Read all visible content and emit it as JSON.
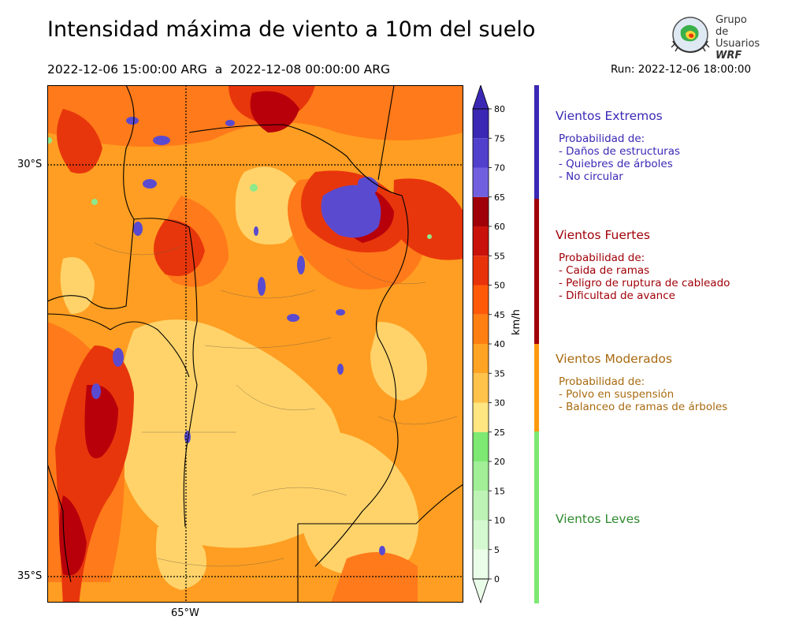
{
  "header": {
    "title": "Intensidad máxima de viento a 10m del suelo",
    "period": "2022-12-06 15:00:00 ARG  a  2022-12-08 00:00:00 ARG",
    "run": "Run: 2022-12-06 18:00:00"
  },
  "logo": {
    "line1": "Grupo de",
    "line2": "Usuarios",
    "line3": "WRF"
  },
  "map": {
    "lat_labels": [
      "30°S",
      "35°S"
    ],
    "lon_labels": [
      "65°W"
    ],
    "colors": {
      "light": "#ffd36a",
      "medium": "#ffa024",
      "orange": "#ff7a1a",
      "red": "#e8360c",
      "darkred": "#b8000a",
      "purple": "#5a4ad0",
      "green": "#8fe88a"
    }
  },
  "colorbar": {
    "unit": "km/h",
    "ticks": [
      "80",
      "75",
      "70",
      "65",
      "60",
      "55",
      "50",
      "45",
      "40",
      "35",
      "30",
      "25",
      "20",
      "15",
      "10",
      "5",
      "0"
    ],
    "bins": [
      {
        "from": 0,
        "to": 5,
        "color": "#eafde8"
      },
      {
        "from": 5,
        "to": 10,
        "color": "#d4f8cf"
      },
      {
        "from": 10,
        "to": 15,
        "color": "#bdf3b5"
      },
      {
        "from": 15,
        "to": 20,
        "color": "#a1ef97"
      },
      {
        "from": 20,
        "to": 25,
        "color": "#7de872"
      },
      {
        "from": 25,
        "to": 30,
        "color": "#ffe680"
      },
      {
        "from": 30,
        "to": 35,
        "color": "#ffc24a"
      },
      {
        "from": 35,
        "to": 40,
        "color": "#ffa324"
      },
      {
        "from": 40,
        "to": 45,
        "color": "#ff7f12"
      },
      {
        "from": 45,
        "to": 50,
        "color": "#ff5a08"
      },
      {
        "from": 50,
        "to": 55,
        "color": "#e8320a"
      },
      {
        "from": 55,
        "to": 60,
        "color": "#c8120a"
      },
      {
        "from": 60,
        "to": 65,
        "color": "#a00008"
      },
      {
        "from": 65,
        "to": 70,
        "color": "#7060e0"
      },
      {
        "from": 70,
        "to": 75,
        "color": "#5040cc"
      },
      {
        "from": 75,
        "to": 80,
        "color": "#3a28b4"
      }
    ]
  },
  "legend": [
    {
      "title": "Vientos Extremos",
      "color": "#3a28b4",
      "bar": "#3a28b4",
      "desc": [
        "Probabilidad de:",
        "- Daños de estructuras",
        "- Quiebres de árboles",
        "- No circular"
      ]
    },
    {
      "title": "Vientos Fuertes",
      "color": "#a00008",
      "bar": "#a00008",
      "desc": [
        "Probabilidad de:",
        "- Caida de ramas",
        "- Peligro de ruptura de cableado",
        "- Dificultad de avance"
      ]
    },
    {
      "title": "Vientos Moderados",
      "color": "#a86a10",
      "bar": "#ff9a10",
      "desc": [
        "Probabilidad de:",
        "- Polvo en suspensión",
        "- Balanceo de ramas de árboles"
      ]
    },
    {
      "title": "Vientos Leves",
      "color": "#2e8a2e",
      "bar": "#7de872",
      "desc": []
    }
  ]
}
